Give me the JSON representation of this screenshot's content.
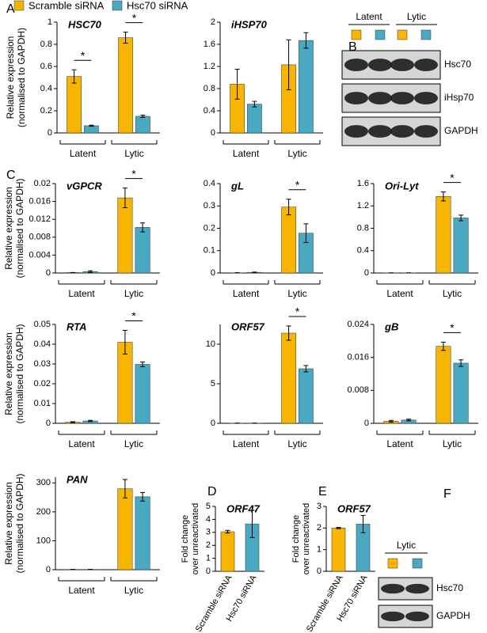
{
  "panels": [
    "A",
    "B",
    "C",
    "D",
    "E",
    "F"
  ],
  "legend": {
    "series": [
      {
        "name": "Scramble siRNA",
        "color": "#f7b500"
      },
      {
        "name": "Hsc70 siRNA",
        "color": "#4aa9c2"
      }
    ]
  },
  "ylabel": [
    "Relative expression",
    "(normalised to GAPDH)"
  ],
  "blots": [
    {
      "groups": [
        "Latent",
        "Lytic"
      ],
      "rows": [
        "Hsc70",
        "iHsp70",
        "GAPDH"
      ]
    },
    {
      "groups": [
        "Lytic"
      ],
      "rows": [
        "Hsc70",
        "GAPDH"
      ]
    }
  ],
  "chart_data": [
    {
      "type": "bar",
      "title": "HSC70",
      "categories": [
        "Latent",
        "Lytic"
      ],
      "ylim": [
        0,
        1
      ],
      "yticks": [
        0,
        0.2,
        0.4,
        0.6,
        0.8,
        1
      ],
      "series": [
        {
          "values": [
            0.51,
            0.86
          ],
          "errors": [
            0.06,
            0.05
          ]
        },
        {
          "values": [
            0.065,
            0.15
          ],
          "errors": [
            0.005,
            0.01
          ]
        }
      ],
      "significance": [
        {
          "category": 0,
          "label": "*"
        },
        {
          "category": 1,
          "label": "*"
        }
      ]
    },
    {
      "type": "bar",
      "title": "iHSP70",
      "categories": [
        "Latent",
        "Lytic"
      ],
      "ylim": [
        0,
        2
      ],
      "yticks": [
        0,
        0.4,
        0.8,
        1.2,
        1.6,
        2
      ],
      "series": [
        {
          "values": [
            0.88,
            1.23
          ],
          "errors": [
            0.27,
            0.45
          ]
        },
        {
          "values": [
            0.52,
            1.67
          ],
          "errors": [
            0.05,
            0.14
          ]
        }
      ]
    },
    {
      "type": "bar",
      "title": "vGPCR",
      "categories": [
        "Latent",
        "Lytic"
      ],
      "ylim": [
        0,
        0.02
      ],
      "yticks": [
        0,
        0.004,
        0.008,
        0.012,
        0.016,
        0.02
      ],
      "series": [
        {
          "values": [
            0.0001,
            0.0168
          ],
          "errors": [
            0,
            0.0022
          ]
        },
        {
          "values": [
            0.0003,
            0.0102
          ],
          "errors": [
            0.0002,
            0.001
          ]
        }
      ],
      "significance": [
        {
          "category": 1,
          "label": "*"
        }
      ]
    },
    {
      "type": "bar",
      "title": "gL",
      "categories": [
        "Latent",
        "Lytic"
      ],
      "ylim": [
        0,
        0.4
      ],
      "yticks": [
        0,
        0.1,
        0.2,
        0.3,
        0.4
      ],
      "series": [
        {
          "values": [
            0.001,
            0.295
          ],
          "errors": [
            0,
            0.035
          ]
        },
        {
          "values": [
            0.003,
            0.178
          ],
          "errors": [
            0.001,
            0.042
          ]
        }
      ],
      "significance": [
        {
          "category": 1,
          "label": "*"
        }
      ]
    },
    {
      "type": "bar",
      "title": "Ori-Lyt",
      "categories": [
        "Latent",
        "Lytic"
      ],
      "ylim": [
        0,
        1.6
      ],
      "yticks": [
        0,
        0.4,
        0.8,
        1.2,
        1.6
      ],
      "series": [
        {
          "values": [
            0.002,
            1.37
          ],
          "errors": [
            0,
            0.08
          ]
        },
        {
          "values": [
            0.002,
            0.985
          ],
          "errors": [
            0,
            0.05
          ]
        }
      ],
      "significance": [
        {
          "category": 1,
          "label": "*"
        }
      ]
    },
    {
      "type": "bar",
      "title": "RTA",
      "categories": [
        "Latent",
        "Lytic"
      ],
      "ylim": [
        0,
        0.05
      ],
      "yticks": [
        0,
        0.01,
        0.02,
        0.03,
        0.04,
        0.05
      ],
      "series": [
        {
          "values": [
            0.0006,
            0.041
          ],
          "errors": [
            0.0002,
            0.006
          ]
        },
        {
          "values": [
            0.0012,
            0.0298
          ],
          "errors": [
            0.0003,
            0.0012
          ]
        }
      ],
      "significance": [
        {
          "category": 1,
          "label": "*"
        }
      ]
    },
    {
      "type": "bar",
      "title": "ORF57",
      "categories": [
        "Latent",
        "Lytic"
      ],
      "ylim": [
        0,
        12.5
      ],
      "yticks": [
        0,
        5,
        10
      ],
      "series": [
        {
          "values": [
            0.02,
            11.4
          ],
          "errors": [
            0,
            0.9
          ]
        },
        {
          "values": [
            0.02,
            6.9
          ],
          "errors": [
            0,
            0.4
          ]
        }
      ],
      "significance": [
        {
          "category": 1,
          "label": "*"
        }
      ]
    },
    {
      "type": "bar",
      "title": "gB",
      "categories": [
        "Latent",
        "Lytic"
      ],
      "ylim": [
        0,
        0.024
      ],
      "yticks": [
        0,
        0.008,
        0.016,
        0.024
      ],
      "series": [
        {
          "values": [
            0.0005,
            0.0187
          ],
          "errors": [
            0.0002,
            0.001
          ]
        },
        {
          "values": [
            0.0008,
            0.0146
          ],
          "errors": [
            0.0002,
            0.0008
          ]
        }
      ],
      "significance": [
        {
          "category": 1,
          "label": "*"
        }
      ]
    },
    {
      "type": "bar",
      "title": "PAN",
      "categories": [
        "Latent",
        "Lytic"
      ],
      "ylim": [
        0,
        320
      ],
      "yticks": [
        0,
        100,
        200,
        300
      ],
      "series": [
        {
          "values": [
            1,
            280
          ],
          "errors": [
            0,
            32
          ]
        },
        {
          "values": [
            1,
            252
          ],
          "errors": [
            0,
            15
          ]
        }
      ]
    },
    {
      "type": "bar",
      "title": "ORF47",
      "ylabel": [
        "Fold change",
        "over unreactivated"
      ],
      "categories": [
        "Scramble siRNA",
        "Hsc70 siRNA"
      ],
      "values": [
        3.05,
        3.65
      ],
      "errors": [
        0.1,
        1.05
      ],
      "colors": [
        "#f7b500",
        "#4aa9c2"
      ],
      "ylim": [
        0,
        5
      ],
      "yticks": [
        0,
        1,
        2,
        3,
        4,
        5
      ]
    },
    {
      "type": "bar",
      "title": "ORF57",
      "ylabel": [
        "Fold change",
        "over unreactivated"
      ],
      "categories": [
        "Scramble siRNA",
        "Hsc70 siRNA"
      ],
      "values": [
        2.0,
        2.18
      ],
      "errors": [
        0.03,
        0.4
      ],
      "colors": [
        "#f7b500",
        "#4aa9c2"
      ],
      "ylim": [
        0,
        3
      ],
      "yticks": [
        0,
        1,
        2,
        3
      ]
    }
  ]
}
